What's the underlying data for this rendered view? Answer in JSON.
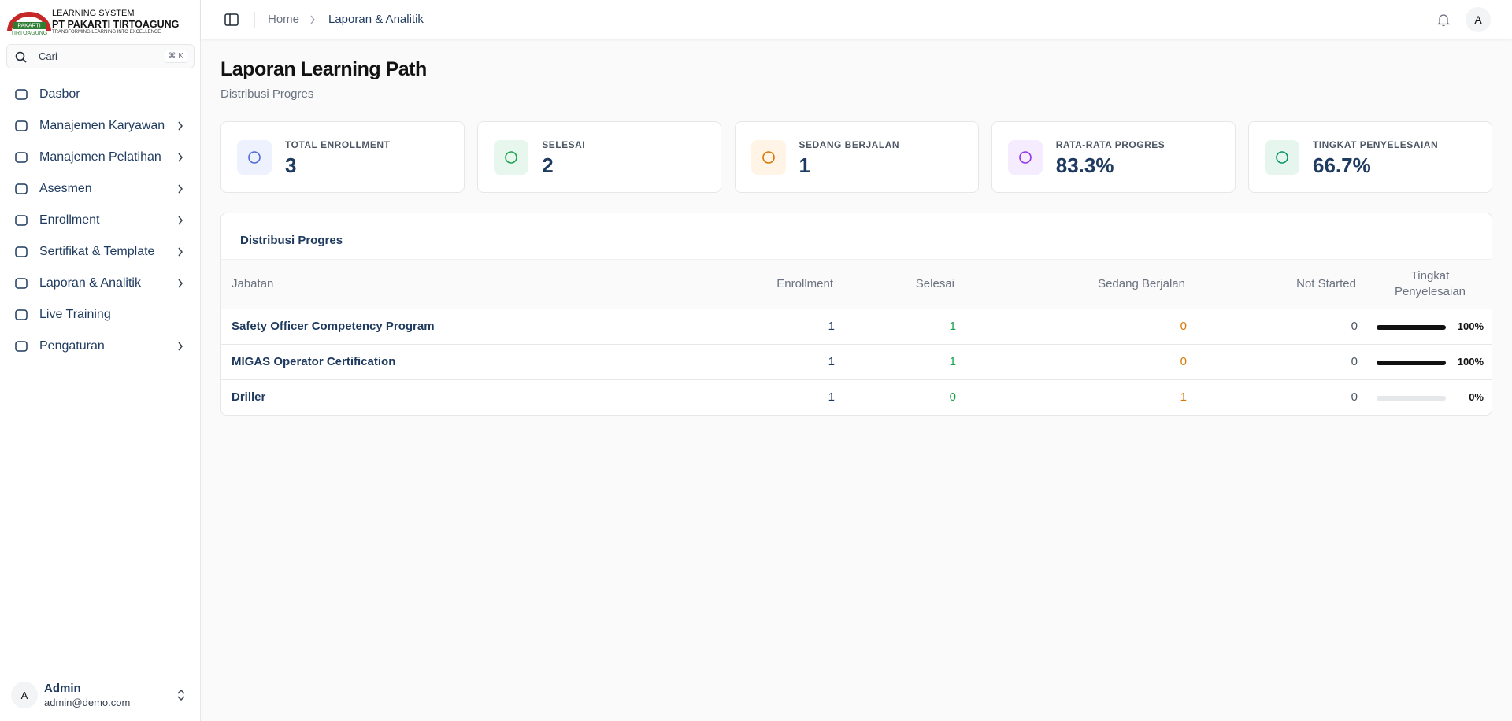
{
  "brand": {
    "system": "LEARNING SYSTEM",
    "company": "PT PAKARTI TIRTOAGUNG",
    "tagline": "TRANSFORMING LEARNING INTO EXCELLENCE",
    "logo_top": "PAKARTI",
    "logo_bottom": "TIRTOAGUNG"
  },
  "search": {
    "placeholder": "Cari",
    "shortcut": "⌘ K"
  },
  "nav": [
    "Dasbor",
    "Manajemen Karyawan",
    "Manajemen Pelatihan",
    "Asesmen",
    "Enrollment",
    "Sertifikat & Template",
    "Laporan & Analitik",
    "Live Training",
    "Pengaturan"
  ],
  "user": {
    "avatar": "A",
    "name": "Admin",
    "email": "admin@demo.com"
  },
  "header": {
    "breadcrumb": [
      "Home",
      "Laporan & Analitik"
    ],
    "avatar": "A"
  },
  "page": {
    "title": "Laporan Learning Path",
    "subtitle": "Distribusi Progres"
  },
  "stats": [
    {
      "label": "TOTAL ENROLLMENT",
      "value": "3"
    },
    {
      "label": "SELESAI",
      "value": "2"
    },
    {
      "label": "SEDANG BERJALAN",
      "value": "1"
    },
    {
      "label": "RATA-RATA PROGRES",
      "value": "83.3%"
    },
    {
      "label": "TINGKAT PENYELESAIAN",
      "value": "66.7%"
    }
  ],
  "table": {
    "title": "Distribusi Progres",
    "columns": [
      "Jabatan",
      "Enrollment",
      "Selesai",
      "Sedang Berjalan",
      "Not Started",
      "Tingkat Penyelesaian"
    ],
    "rows": [
      {
        "name": "Safety Officer Competency Program",
        "enrollment": 1,
        "completed": 1,
        "in_progress": 0,
        "not_started": 0,
        "completion": {
          "value": 100,
          "label": "100%"
        }
      },
      {
        "name": "MIGAS Operator Certification",
        "enrollment": 1,
        "completed": 1,
        "in_progress": 0,
        "not_started": 0,
        "completion": {
          "value": 100,
          "label": "100%"
        }
      },
      {
        "name": "Driller",
        "enrollment": 1,
        "completed": 0,
        "in_progress": 1,
        "not_started": 0,
        "completion": {
          "value": 0,
          "label": "0%"
        }
      }
    ]
  }
}
